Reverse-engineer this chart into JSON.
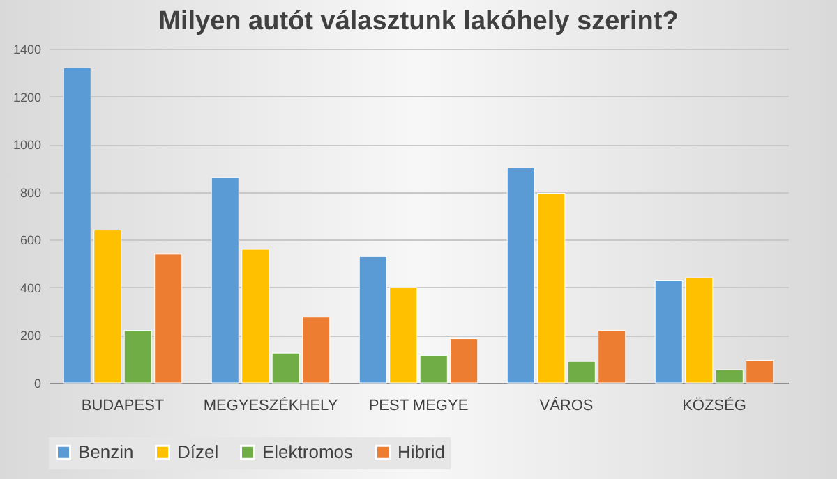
{
  "chart_data": {
    "type": "bar",
    "title": "Milyen autót választunk lakóhely szerint?",
    "categories": [
      "BUDAPEST",
      "MEGYESZÉKHELY",
      "PEST MEGYE",
      "VÁROS",
      "KÖZSÉG"
    ],
    "series": [
      {
        "name": "Benzin",
        "color": "#5b9bd5",
        "values": [
          1320,
          860,
          530,
          900,
          430
        ]
      },
      {
        "name": "Dízel",
        "color": "#ffc000",
        "values": [
          640,
          560,
          400,
          795,
          440
        ]
      },
      {
        "name": "Elektromos",
        "color": "#70ad47",
        "values": [
          220,
          125,
          115,
          90,
          55
        ]
      },
      {
        "name": "Hibrid",
        "color": "#ed7d31",
        "values": [
          540,
          275,
          185,
          220,
          95
        ]
      }
    ],
    "ylim": [
      0,
      1400
    ],
    "yticks": [
      0,
      200,
      400,
      600,
      800,
      1000,
      1200,
      1400
    ],
    "grid": true,
    "legend": "bottom"
  }
}
